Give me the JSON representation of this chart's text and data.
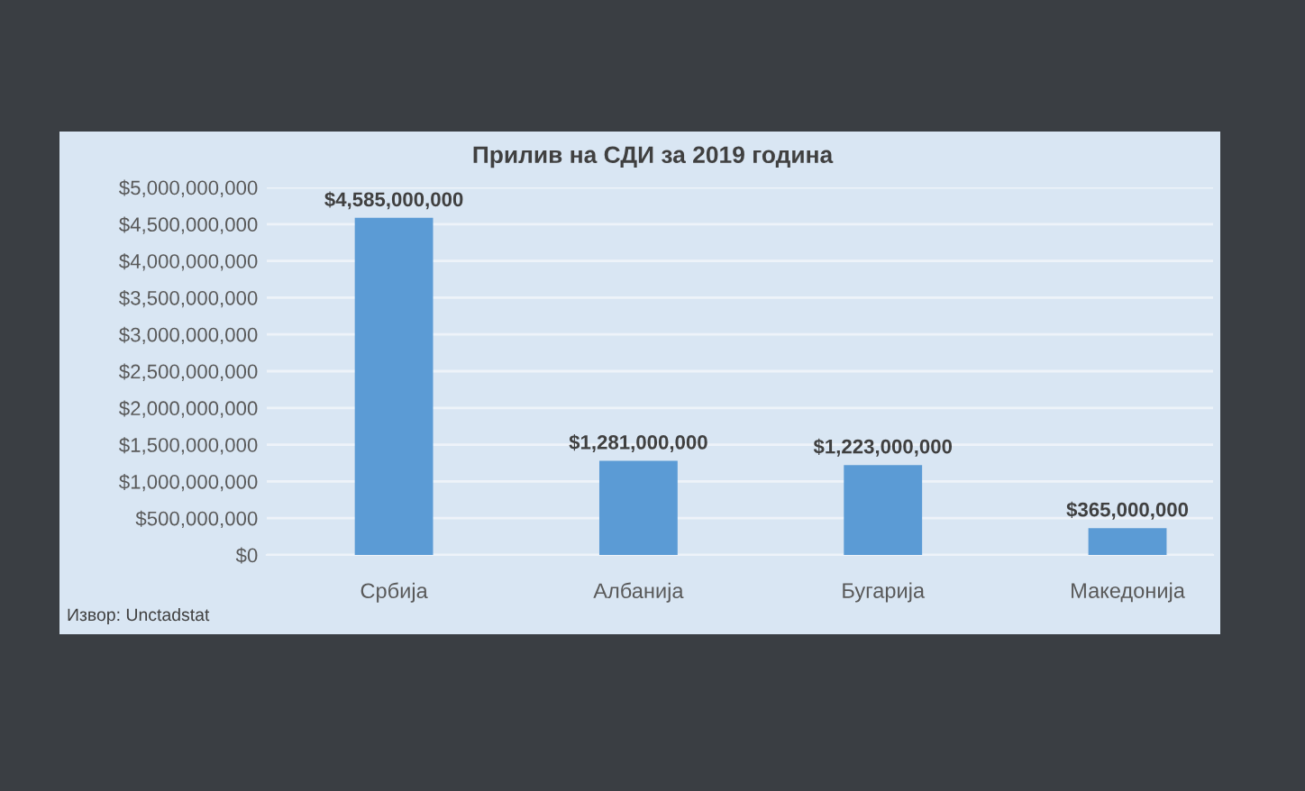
{
  "chart_data": {
    "type": "bar",
    "title": "Прилив на СДИ за 2019 година",
    "categories": [
      "Србија",
      "Албанија",
      "Бугарија",
      "Македонија"
    ],
    "values": [
      4585000000,
      1281000000,
      1223000000,
      365000000
    ],
    "value_labels": [
      "$4,585,000,000",
      "$1,281,000,000",
      "$1,223,000,000",
      "$365,000,000"
    ],
    "color": "#5b9bd5",
    "ylim": [
      0,
      5000000000
    ],
    "yticks": [
      {
        "value": 0,
        "label": "$0"
      },
      {
        "value": 500000000,
        "label": "$500,000,000"
      },
      {
        "value": 1000000000,
        "label": "$1,000,000,000"
      },
      {
        "value": 1500000000,
        "label": "$1,500,000,000"
      },
      {
        "value": 2000000000,
        "label": "$2,000,000,000"
      },
      {
        "value": 2500000000,
        "label": "$2,500,000,000"
      },
      {
        "value": 3000000000,
        "label": "$3,000,000,000"
      },
      {
        "value": 3500000000,
        "label": "$3,500,000,000"
      },
      {
        "value": 4000000000,
        "label": "$4,000,000,000"
      },
      {
        "value": 4500000000,
        "label": "$4,500,000,000"
      },
      {
        "value": 5000000000,
        "label": "$5,000,000,000"
      }
    ],
    "grid": "y",
    "annotations": [
      "Извор: Unctadstat"
    ]
  }
}
